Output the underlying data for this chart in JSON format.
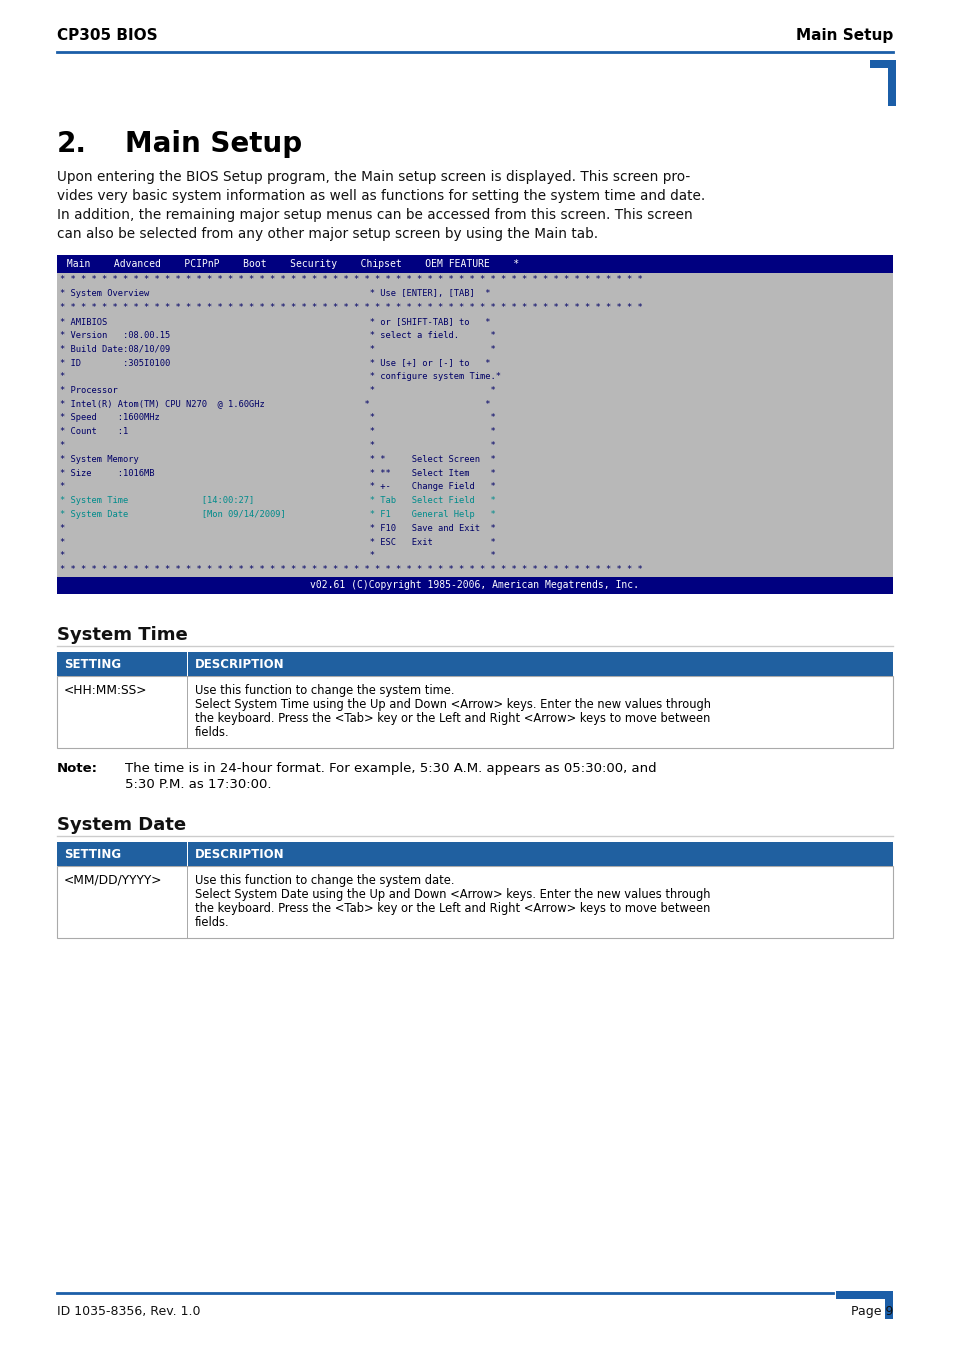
{
  "header_left": "CP305 BIOS",
  "header_right": "Main Setup",
  "footer_left": "ID 1035-8356, Rev. 1.0",
  "footer_right": "Page 9",
  "chapter_num": "2.",
  "chapter_title": "Main Setup",
  "intro_lines": [
    "Upon entering the BIOS Setup program, the Main setup screen is displayed. This screen pro-",
    "vides very basic system information as well as functions for setting the system time and date.",
    "In addition, the remaining major setup menus can be accessed from this screen. This screen",
    "can also be selected from any other major setup screen by using the Main tab."
  ],
  "bios_menu_bar": " Main    Advanced    PCIPnP    Boot    Security    Chipset    OEM FEATURE    *",
  "bios_lines": [
    "* * * * * * * * * * * * * * * * * * * * * * * * * * * * * * * * * * * * * * * * * * * * * * * * * * * * * * * *",
    "* System Overview                                          * Use [ENTER], [TAB]  *",
    "* * * * * * * * * * * * * * * * * * * * * * * * * * * * * * * * * * * * * * * * * * * * * * * * * * * * * * * *",
    "* AMIBIOS                                                  * or [SHIFT-TAB] to   *",
    "* Version   :08.00.15                                      * select a field.      *",
    "* Build Date:08/10/09                                      *                      *",
    "* ID        :305I0100                                      * Use [+] or [-] to   *",
    "*                                                          * configure system Time.*",
    "* Processor                                                *                      *",
    "* Intel(R) Atom(TM) CPU N270  @ 1.60GHz                   *                      *",
    "* Speed    :1600MHz                                        *                      *",
    "* Count    :1                                              *                      *",
    "*                                                          *                      *",
    "* System Memory                                            * *     Select Screen  *",
    "* Size     :1016MB                                         * **    Select Item    *",
    "*                                                          * +-    Change Field   *",
    "* System Time              [14:00:27]                      * Tab   Select Field   *",
    "* System Date              [Mon 09/14/2009]                * F1    General Help   *",
    "*                                                          * F10   Save and Exit  *",
    "*                                                          * ESC   Exit           *",
    "*                                                          *                      *",
    "* * * * * * * * * * * * * * * * * * * * * * * * * * * * * * * * * * * * * * * * * * * * * * * * * * * * * * * *"
  ],
  "bios_footer": "v02.61 (C)Copyright 1985-2006, American Megatrends, Inc.",
  "section1_title": "System Time",
  "table1_header": [
    "SETTING",
    "DESCRIPTION"
  ],
  "table1_row_setting": "<HH:MM:SS>",
  "table1_row_desc": [
    "Use this function to change the system time.",
    "Select System Time using the Up and Down <Arrow> keys. Enter the new values through",
    "the keyboard. Press the <Tab> key or the Left and Right <Arrow> keys to move between",
    "fields."
  ],
  "note1_label": "Note:",
  "note1_lines": [
    "The time is in 24-hour format. For example, 5:30 A.M. appears as 05:30:00, and",
    "5:30 P.M. as 17:30:00."
  ],
  "section2_title": "System Date",
  "table2_header": [
    "SETTING",
    "DESCRIPTION"
  ],
  "table2_row_setting": "<MM/DD/YYYY>",
  "table2_row_desc": [
    "Use this function to change the system date.",
    "Select System Date using the Up and Down <Arrow> keys. Enter the new values through",
    "the keyboard. Press the <Tab> key or the Left and Right <Arrow> keys to move between",
    "fields."
  ],
  "blue_color": "#1B5EA8",
  "dark_blue": "#1A3A6B",
  "bios_bg": "#B8B8B8",
  "bios_header_bg": "#000080",
  "bios_text_color": "#000066",
  "bios_highlight_color": "#008B8B",
  "bios_footer_bg": "#000080",
  "table_header_bg": "#2060A0",
  "table_border_color": "#AAAAAA"
}
